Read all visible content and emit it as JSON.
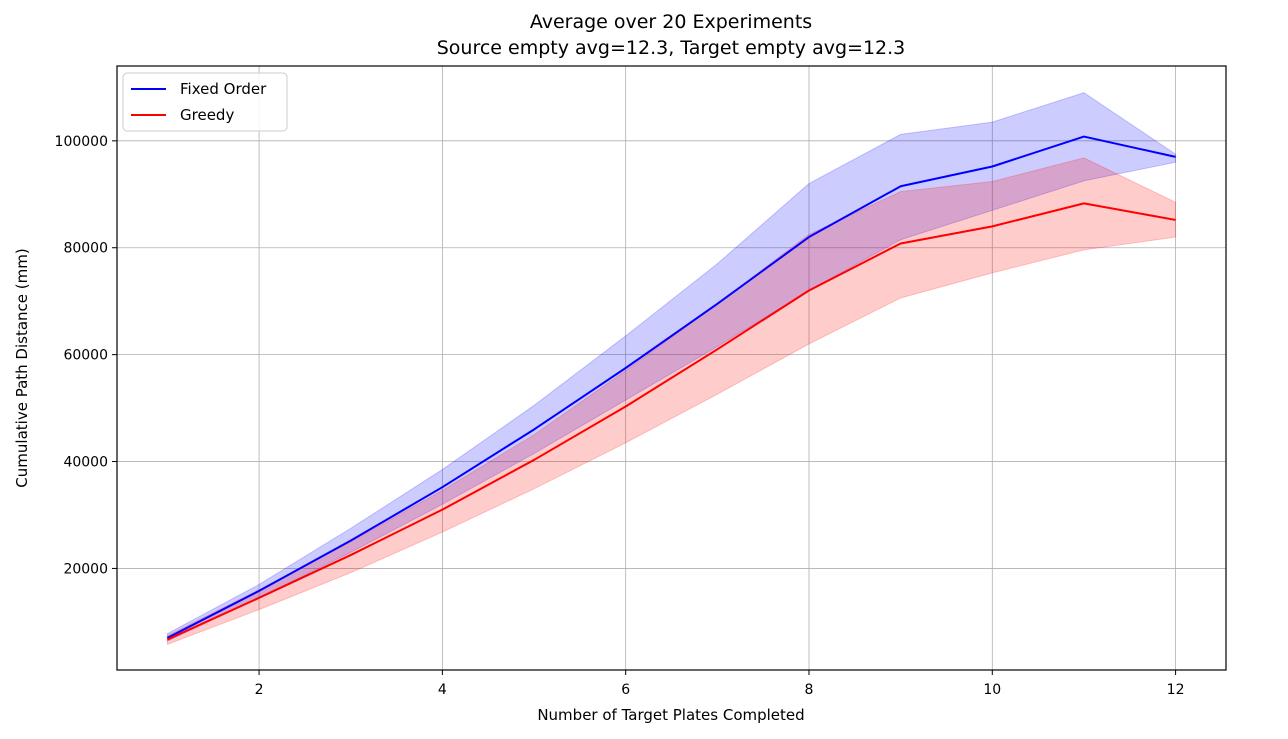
{
  "chart_data": {
    "type": "line",
    "title": "Average over 20 Experiments",
    "subtitle": "Source empty avg=12.3, Target empty avg=12.3",
    "xlabel": "Number of Target Plates Completed",
    "ylabel": "Cumulative Path Distance (mm)",
    "xlim": [
      0.45,
      12.55
    ],
    "ylim": [
      1000,
      114000
    ],
    "x_ticks": [
      2,
      4,
      6,
      8,
      10,
      12
    ],
    "y_ticks": [
      20000,
      40000,
      60000,
      80000,
      100000
    ],
    "grid": true,
    "legend_position": "top-left",
    "x": [
      1,
      2,
      3,
      4,
      5,
      6,
      7,
      8,
      9,
      10,
      11,
      12
    ],
    "series": [
      {
        "name": "Fixed Order",
        "color": "#0000ff",
        "values": [
          7000,
          15800,
          25200,
          35200,
          46000,
          57500,
          69500,
          82000,
          91500,
          95200,
          100800,
          97000
        ],
        "band_lower": [
          6400,
          14500,
          23000,
          32000,
          41500,
          51500,
          61500,
          72000,
          81500,
          87000,
          92500,
          96000
        ],
        "band_upper": [
          7800,
          17000,
          27500,
          38500,
          50500,
          63500,
          77000,
          92000,
          101200,
          103500,
          109000,
          97500
        ]
      },
      {
        "name": "Greedy",
        "color": "#ff0000",
        "values": [
          6700,
          14500,
          22500,
          31000,
          40300,
          50300,
          61000,
          72000,
          80800,
          84000,
          88300,
          85200
        ],
        "band_lower": [
          5800,
          12300,
          19200,
          26800,
          34900,
          43500,
          52600,
          62000,
          70600,
          75300,
          79600,
          82000
        ],
        "band_upper": [
          7400,
          16000,
          25000,
          34600,
          45000,
          57000,
          69500,
          82500,
          90500,
          92400,
          96800,
          88500
        ]
      }
    ]
  }
}
